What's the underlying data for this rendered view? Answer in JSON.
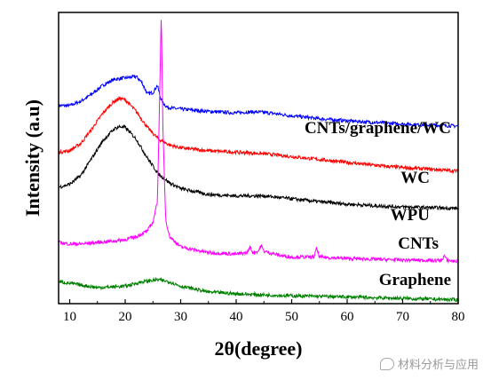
{
  "chart_data": {
    "type": "line",
    "title": "",
    "xlabel": "2θ(degree)",
    "ylabel": "Intensity (a.u)",
    "xlim": [
      8,
      80
    ],
    "ylim": [
      0,
      100
    ],
    "x_ticks": [
      10,
      20,
      30,
      40,
      50,
      60,
      70,
      80
    ],
    "y_ticks_shown": false,
    "grid": false,
    "legend": "inline labels at right",
    "series": [
      {
        "name": "CNTs/graphene/WC",
        "color": "#0000ff",
        "x": [
          8,
          10,
          12,
          14,
          15,
          16,
          18,
          20,
          22,
          23,
          24,
          25,
          25.8,
          26.3,
          26.8,
          27.5,
          29,
          32,
          35,
          40,
          42,
          44,
          46,
          50,
          55,
          60,
          65,
          70,
          75,
          80
        ],
        "y": [
          68,
          68,
          69.5,
          72,
          73.5,
          75,
          77,
          77.5,
          78,
          76,
          72,
          72.5,
          75,
          71,
          69,
          67.5,
          67,
          66.5,
          66,
          65.5,
          65.8,
          65.8,
          65.5,
          64.5,
          63.5,
          62.8,
          62.2,
          61.7,
          61.3,
          61
        ]
      },
      {
        "name": "WC",
        "color": "#ff0000",
        "x": [
          8,
          10,
          12,
          14,
          16,
          18,
          19,
          20,
          22,
          24,
          26,
          28,
          30,
          35,
          40,
          45,
          50,
          55,
          60,
          65,
          70,
          75,
          80
        ],
        "y": [
          52,
          52.5,
          55,
          60,
          65.5,
          69.5,
          70.5,
          70,
          66,
          60.5,
          56.5,
          54.5,
          53.5,
          52.5,
          52,
          51.5,
          50.5,
          49.5,
          48.5,
          47.5,
          46.7,
          46.2,
          45.5
        ]
      },
      {
        "name": "WPU",
        "color": "#000000",
        "x": [
          8,
          10,
          12,
          14,
          16,
          18,
          19,
          20,
          22,
          24,
          26,
          28,
          30,
          35,
          40,
          45,
          50,
          55,
          60,
          65,
          70,
          75,
          80
        ],
        "y": [
          40,
          41,
          44,
          50,
          56,
          60,
          60.8,
          60.5,
          56.5,
          50,
          44.5,
          41.5,
          39.5,
          37.5,
          37,
          37,
          36,
          35,
          34.2,
          33.6,
          33.2,
          33,
          32.7
        ]
      },
      {
        "name": "CNTs",
        "color": "#ff00ff",
        "x": [
          8,
          10,
          12,
          15,
          18,
          20,
          22,
          24,
          25,
          25.8,
          26.2,
          26.5,
          26.8,
          27.3,
          28,
          30,
          35,
          40,
          42,
          42.5,
          43,
          44,
          44.5,
          45,
          48,
          50,
          54,
          54.5,
          55,
          60,
          70,
          77,
          77.5,
          78,
          80
        ],
        "y": [
          21,
          20.5,
          20.5,
          21,
          21.5,
          22,
          23,
          25,
          28,
          35,
          70,
          100,
          60,
          29,
          23,
          19.5,
          17.5,
          17,
          17.5,
          19.5,
          17.5,
          18,
          20,
          18,
          16.5,
          16,
          16,
          19,
          16,
          15.5,
          15,
          14.8,
          16.5,
          14.8,
          14.5
        ]
      },
      {
        "name": "Graphene",
        "color": "#008000",
        "x": [
          8,
          10,
          15,
          20,
          23,
          25,
          26,
          28,
          30,
          35,
          40,
          45,
          50,
          60,
          70,
          80
        ],
        "y": [
          7.5,
          7,
          5.5,
          6,
          7.5,
          8,
          8.2,
          7.5,
          6,
          4,
          3.4,
          3,
          2.7,
          2.3,
          1.8,
          1.3
        ]
      }
    ],
    "annotations": [
      "CNTs/graphene/WC",
      "WC",
      "WPU",
      "CNTs",
      "Graphene"
    ]
  },
  "watermark": {
    "text": "材料分析与应用",
    "icon": "wechat-bubble-icon",
    "color": "#9a9a9a"
  }
}
